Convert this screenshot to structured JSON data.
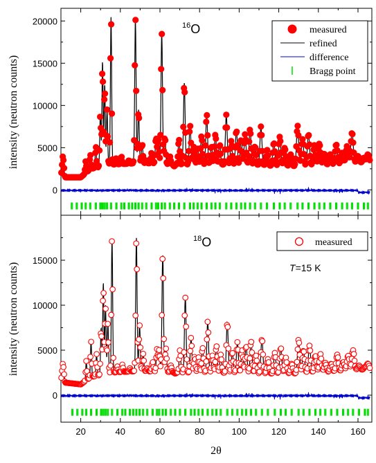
{
  "chart_data": [
    {
      "type": "scatter",
      "label": "16O",
      "label_mass": "16",
      "label_element": "O",
      "ylabel": "intensity (neutron counts)",
      "xlim": [
        10,
        167
      ],
      "ylim": [
        -3000,
        21500
      ],
      "yticks": [
        0,
        5000,
        10000,
        15000,
        20000
      ],
      "marker_style": "filled",
      "legend": [
        "measured",
        "refined",
        "difference",
        "Bragg point"
      ],
      "legend_position": "top-right",
      "bragg_y": -1900,
      "background": [
        [
          10,
          1500
        ],
        [
          11,
          4200
        ],
        [
          12,
          1500
        ],
        [
          20,
          1500
        ],
        [
          25,
          2500
        ],
        [
          35,
          3000
        ],
        [
          50,
          3200
        ],
        [
          70,
          3000
        ],
        [
          90,
          3000
        ],
        [
          110,
          2900
        ],
        [
          130,
          2800
        ],
        [
          150,
          3000
        ],
        [
          160,
          3200
        ],
        [
          165,
          3200
        ]
      ],
      "peaks": [
        [
          22.5,
          3400
        ],
        [
          24.8,
          4200
        ],
        [
          27.6,
          5200
        ],
        [
          29.9,
          9000
        ],
        [
          31.0,
          15200
        ],
        [
          32.1,
          12500
        ],
        [
          33.3,
          9500
        ],
        [
          35.3,
          20500
        ],
        [
          38.0,
          3800
        ],
        [
          40.5,
          4000
        ],
        [
          44.3,
          3500
        ],
        [
          47.6,
          20300
        ],
        [
          49.2,
          9500
        ],
        [
          51.0,
          5500
        ],
        [
          53.1,
          3500
        ],
        [
          55.8,
          4400
        ],
        [
          58.0,
          6200
        ],
        [
          59.1,
          6000
        ],
        [
          60.9,
          18600
        ],
        [
          62.5,
          6300
        ],
        [
          65.0,
          4000
        ],
        [
          67.2,
          2800
        ],
        [
          69.6,
          6000
        ],
        [
          72.3,
          12700
        ],
        [
          75.2,
          7700
        ],
        [
          77.0,
          5100
        ],
        [
          79.0,
          5000
        ],
        [
          81.0,
          6400
        ],
        [
          83.6,
          9000
        ],
        [
          86.0,
          5200
        ],
        [
          88.0,
          6600
        ],
        [
          90.2,
          5400
        ],
        [
          93.5,
          8900
        ],
        [
          96.0,
          5800
        ],
        [
          98.6,
          7100
        ],
        [
          101.0,
          6000
        ],
        [
          103.0,
          6600
        ],
        [
          105.5,
          7200
        ],
        [
          108.0,
          5200
        ],
        [
          111.0,
          7500
        ],
        [
          114.0,
          4800
        ],
        [
          117.5,
          5600
        ],
        [
          120.5,
          6300
        ],
        [
          123.0,
          5000
        ],
        [
          126.0,
          4200
        ],
        [
          129.5,
          7600
        ],
        [
          132.0,
          6000
        ],
        [
          135.0,
          6600
        ],
        [
          138.0,
          5300
        ],
        [
          140.5,
          5500
        ],
        [
          143.0,
          4300
        ],
        [
          146.0,
          4200
        ],
        [
          149.0,
          5400
        ],
        [
          152.0,
          4400
        ],
        [
          154.5,
          5200
        ],
        [
          157.0,
          6800
        ],
        [
          160.0,
          4000
        ],
        [
          163.0,
          3800
        ],
        [
          165.0,
          4200
        ]
      ],
      "bragg_positions": [
        15.5,
        18.0,
        20.5,
        22.5,
        24.8,
        27.6,
        29.9,
        31.0,
        32.1,
        33.3,
        35.3,
        38.0,
        40.5,
        42.0,
        44.3,
        46.0,
        47.6,
        49.2,
        51.0,
        53.1,
        55.8,
        58.0,
        59.1,
        60.9,
        62.5,
        65.0,
        67.2,
        69.6,
        72.3,
        75.2,
        77.0,
        79.0,
        81.0,
        83.6,
        86.0,
        88.0,
        90.2,
        93.5,
        96.0,
        98.6,
        101.0,
        103.0,
        105.5,
        108.0,
        111.0,
        114.0,
        117.5,
        120.5,
        123.0,
        126.0,
        129.5,
        132.0,
        135.0,
        138.0,
        140.5,
        143.0,
        146.0,
        149.0,
        152.0,
        154.5,
        157.0,
        160.0,
        163.0,
        165.0
      ]
    },
    {
      "type": "scatter",
      "label": "18O",
      "label_mass": "18",
      "label_element": "O",
      "temperature_label_var": "T",
      "temperature_label_rest": "=15 K",
      "ylabel": "intensity (neutron counts)",
      "xlabel": "2θ",
      "xlim": [
        10,
        167
      ],
      "ylim": [
        -3000,
        20000
      ],
      "yticks": [
        0,
        5000,
        10000,
        15000
      ],
      "xticks": [
        20,
        40,
        60,
        80,
        100,
        120,
        140,
        160
      ],
      "marker_style": "open",
      "legend": [
        "measured"
      ],
      "legend_position": "top-right",
      "bragg_y": -1900,
      "background": [
        [
          10,
          1500
        ],
        [
          11,
          3700
        ],
        [
          12,
          1400
        ],
        [
          20,
          1200
        ],
        [
          25,
          2000
        ],
        [
          35,
          2500
        ],
        [
          50,
          2700
        ],
        [
          70,
          2500
        ],
        [
          90,
          2500
        ],
        [
          110,
          2400
        ],
        [
          130,
          2400
        ],
        [
          150,
          2600
        ],
        [
          160,
          2800
        ],
        [
          165,
          2800
        ]
      ],
      "peaks": [
        [
          22.8,
          3800
        ],
        [
          25.2,
          6000
        ],
        [
          28.0,
          4600
        ],
        [
          30.3,
          7500
        ],
        [
          31.4,
          12500
        ],
        [
          32.5,
          10000
        ],
        [
          33.7,
          8000
        ],
        [
          35.8,
          17300
        ],
        [
          38.5,
          3200
        ],
        [
          41.0,
          3400
        ],
        [
          44.8,
          3000
        ],
        [
          48.1,
          17500
        ],
        [
          49.7,
          7800
        ],
        [
          51.5,
          4600
        ],
        [
          53.6,
          3000
        ],
        [
          56.3,
          3700
        ],
        [
          58.5,
          5100
        ],
        [
          59.6,
          5000
        ],
        [
          61.4,
          15600
        ],
        [
          63.0,
          5200
        ],
        [
          65.5,
          3300
        ],
        [
          67.7,
          2400
        ],
        [
          70.1,
          5000
        ],
        [
          72.8,
          10900
        ],
        [
          75.7,
          6400
        ],
        [
          77.5,
          4300
        ],
        [
          79.5,
          4200
        ],
        [
          81.5,
          5300
        ],
        [
          84.1,
          8200
        ],
        [
          86.5,
          4400
        ],
        [
          88.5,
          5500
        ],
        [
          90.7,
          4500
        ],
        [
          94.0,
          8100
        ],
        [
          96.5,
          4800
        ],
        [
          99.1,
          5900
        ],
        [
          101.5,
          5000
        ],
        [
          103.5,
          5500
        ],
        [
          106.0,
          6000
        ],
        [
          108.5,
          4400
        ],
        [
          111.5,
          6300
        ],
        [
          114.5,
          4000
        ],
        [
          118.0,
          4700
        ],
        [
          121.0,
          5300
        ],
        [
          123.5,
          4200
        ],
        [
          126.5,
          3500
        ],
        [
          130.0,
          6200
        ],
        [
          132.5,
          5000
        ],
        [
          135.5,
          5500
        ],
        [
          138.5,
          4400
        ],
        [
          141.0,
          4600
        ],
        [
          143.5,
          3600
        ],
        [
          146.5,
          3500
        ],
        [
          149.5,
          4500
        ],
        [
          152.5,
          3700
        ],
        [
          155.0,
          4400
        ],
        [
          157.5,
          5000
        ],
        [
          160.5,
          3300
        ],
        [
          163.5,
          3100
        ],
        [
          165.0,
          3500
        ]
      ],
      "bragg_positions": [
        15.8,
        18.3,
        20.8,
        22.8,
        25.2,
        28.0,
        30.3,
        31.4,
        32.5,
        33.7,
        35.8,
        38.5,
        41.0,
        42.5,
        44.8,
        46.5,
        48.1,
        49.7,
        51.5,
        53.6,
        56.3,
        58.5,
        59.6,
        61.4,
        63.0,
        65.5,
        67.7,
        70.1,
        72.8,
        75.7,
        77.5,
        79.5,
        81.5,
        84.1,
        86.5,
        88.5,
        90.7,
        94.0,
        96.5,
        99.1,
        101.5,
        103.5,
        106.0,
        108.5,
        111.5,
        114.5,
        118.0,
        121.0,
        123.5,
        126.5,
        130.0,
        132.5,
        135.5,
        138.5,
        141.0,
        143.5,
        146.5,
        149.5,
        152.5,
        155.0,
        157.5,
        160.5,
        163.5,
        165.0
      ]
    }
  ],
  "colors": {
    "measured": "#ff0000",
    "refined": "#000000",
    "difference": "#0000cc",
    "bragg": "#00dd00",
    "axis": "#000000"
  }
}
